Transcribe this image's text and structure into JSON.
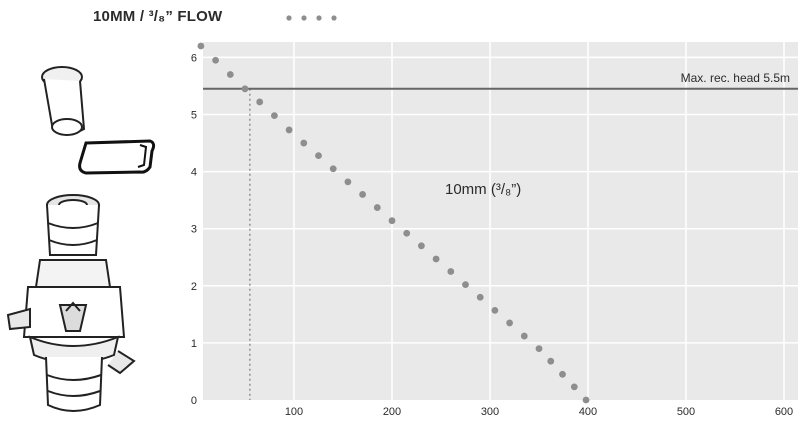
{
  "title": "10MM / ³/₈” FLOW",
  "legend_marker": "grey-dot",
  "product_icons": [
    "tube-cap-icon",
    "hose-clip-icon",
    "flow-connector-icon"
  ],
  "colors": {
    "plot_background": "#e9e9e9",
    "grid": "#ffffff",
    "dots": "#8e8e8e",
    "max_head_line": "#666666",
    "text": "#2b2b2b"
  },
  "chart_data": {
    "type": "scatter",
    "title": "10MM / ³/₈” FLOW",
    "xlabel": "",
    "ylabel": "",
    "xlim": [
      0,
      600
    ],
    "ylim": [
      0,
      6.3
    ],
    "x_ticks": [
      "100",
      "200",
      "300",
      "400",
      "500",
      "600"
    ],
    "y_ticks": [
      "0",
      "1",
      "2",
      "3",
      "4",
      "5",
      "6"
    ],
    "grid": true,
    "series": [
      {
        "name": "10mm (³/₈”)",
        "x": [
          5,
          20,
          35,
          50,
          65,
          80,
          95,
          110,
          125,
          140,
          155,
          170,
          185,
          200,
          215,
          230,
          245,
          260,
          275,
          290,
          305,
          320,
          335,
          350,
          362,
          374,
          386,
          398
        ],
        "y": [
          6.2,
          5.95,
          5.7,
          5.45,
          5.22,
          4.98,
          4.73,
          4.5,
          4.28,
          4.05,
          3.82,
          3.6,
          3.37,
          3.14,
          2.92,
          2.7,
          2.47,
          2.25,
          2.02,
          1.8,
          1.57,
          1.35,
          1.12,
          0.9,
          0.68,
          0.45,
          0.23,
          0.0
        ]
      }
    ],
    "annotations": [
      {
        "type": "hline",
        "y": 5.45,
        "label": "Max. rec. head 5.5m"
      },
      {
        "type": "vline",
        "x": 55,
        "y_top": 5.45,
        "style": "dotted"
      }
    ]
  }
}
